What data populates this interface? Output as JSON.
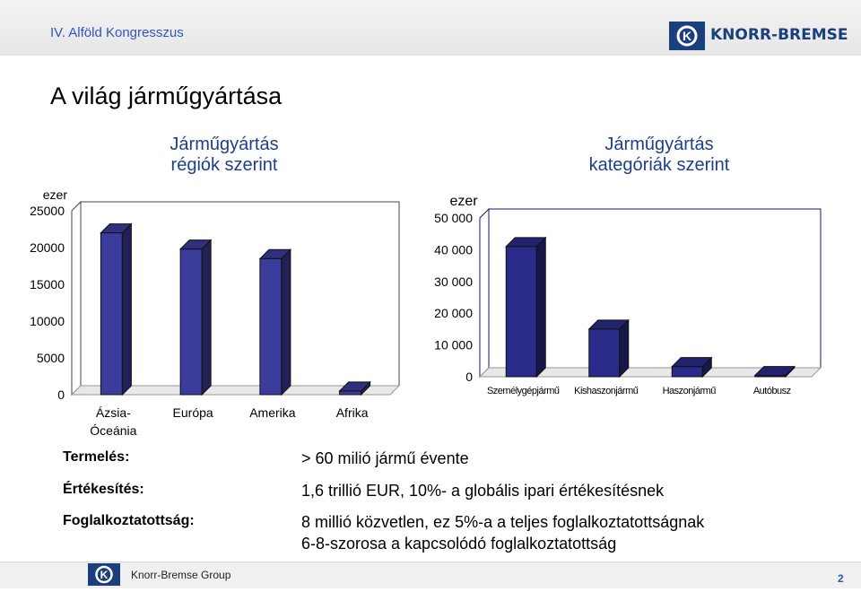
{
  "header": {
    "conference": "IV. Alföld Kongresszus",
    "logo_text": "KNORR-BREMSE"
  },
  "slide": {
    "title": "A világ járműgyártása"
  },
  "chart_headings": {
    "left": [
      "Járműgyártás",
      "régiók szerint"
    ],
    "right": [
      "Járműgyártás",
      "kategóriák szerint"
    ]
  },
  "chart_data": [
    {
      "type": "bar",
      "title": "Járműgyártás régiók szerint",
      "ylabel": "ezer",
      "categories": [
        "Ázsia-Óceánia",
        "Európa",
        "Amerika",
        "Afrika"
      ],
      "category_lines": [
        [
          "Ázsia-",
          "Óceánia"
        ],
        [
          "Európa"
        ],
        [
          "Amerika"
        ],
        [
          "Afrika"
        ]
      ],
      "values": [
        22000,
        19800,
        18500,
        500
      ],
      "ylim": [
        0,
        25000
      ],
      "yticks": [
        "0",
        "5000",
        "10000",
        "15000",
        "20000",
        "25000"
      ],
      "bar_color": "#3c3c9c"
    },
    {
      "type": "bar",
      "title": "Járműgyártás kategóriák szerint",
      "ylabel": "ezer",
      "categories": [
        "Személygépjármű",
        "Kishaszonjármű",
        "Haszonjármű",
        "Autóbusz"
      ],
      "values": [
        41000,
        15000,
        3200,
        400
      ],
      "ylim": [
        0,
        50000
      ],
      "yticks": [
        "0",
        "10 000",
        "20 000",
        "30 000",
        "40 000",
        "50 000"
      ],
      "bar_color": "#2a2a8a"
    }
  ],
  "facts": [
    {
      "label": "Termelés:",
      "lines": [
        "> 60 milió jármű évente"
      ]
    },
    {
      "label": "Értékesítés:",
      "lines": [
        "1,6 trillió EUR, 10%- a globális ipari értékesítésnek"
      ]
    },
    {
      "label": "Foglalkoztatottság:",
      "lines": [
        "8 millió közvetlen, ez 5%-a a teljes foglalkoztatottságnak",
        "6-8-szorosa a kapcsolódó foglalkoztatottság"
      ]
    }
  ],
  "footer": {
    "company": "Knorr-Bremse Group",
    "page": "2"
  },
  "colors": {
    "accent_blue": "#2f55c2",
    "logo_blue": "#1b3f7c"
  },
  "icons": {
    "logo": "knorr-bremse-k-icon"
  }
}
